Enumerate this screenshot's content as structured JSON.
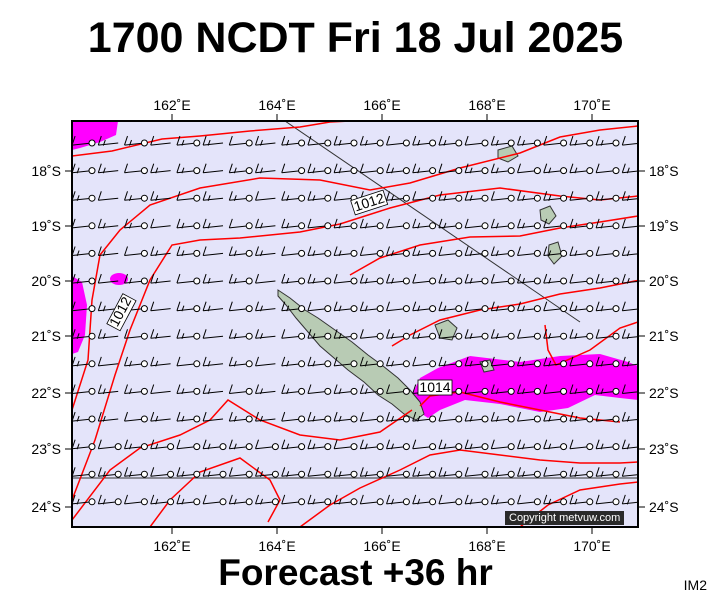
{
  "title": "1700 NCDT Fri 18 Jul 2025",
  "subtitle": "Forecast +36 hr",
  "image_code": "IM2",
  "copyright": "Copyright metvuw.com",
  "map": {
    "lon_range": [
      160.0,
      171.0
    ],
    "lat_range": [
      -24.4,
      -17.1
    ],
    "lon_ticks": [
      162,
      164,
      166,
      168,
      170
    ],
    "lon_tick_labels": [
      "162˚E",
      "164˚E",
      "166˚E",
      "168˚E",
      "170˚E"
    ],
    "lat_ticks": [
      -18,
      -19,
      -20,
      -21,
      -22,
      -23,
      -24
    ],
    "lat_tick_labels": [
      "18˚S",
      "19˚S",
      "20˚S",
      "21˚S",
      "22˚S",
      "23˚S",
      "24˚S"
    ],
    "isobar_labels": [
      "1012",
      "1012",
      "1014"
    ],
    "colors": {
      "sea": "#e4e4fa",
      "isobar": "#ff0000",
      "rain": "#ff00ff",
      "land": "#b8cbb4",
      "wind": "#000000"
    }
  }
}
